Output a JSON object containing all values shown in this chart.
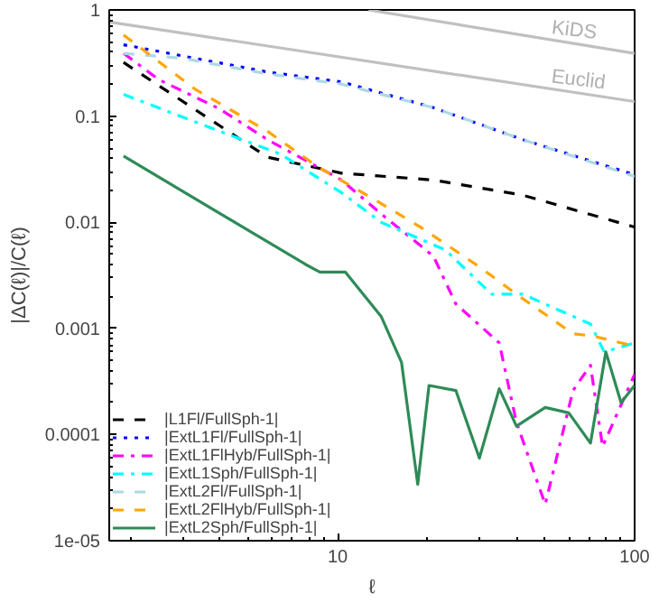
{
  "chart_data": {
    "type": "line",
    "xlabel": "ℓ",
    "ylabel": "|ΔC(ℓ)|/C(ℓ)",
    "log": "xy",
    "xlim": [
      1.7,
      100
    ],
    "ylim": [
      1e-05,
      1
    ],
    "xticks": [
      10,
      100
    ],
    "yticks": [
      1,
      0.1,
      0.01,
      0.001,
      0.0001,
      {
        "value": 1e-05,
        "label": "1e-05"
      }
    ],
    "grid": false,
    "legend": "bottom left",
    "series": [
      {
        "name": "|L1Fl/FullSph-1|",
        "color": "#000000",
        "line_style": "dashed",
        "x": [
          1.9,
          5.8,
          10.3,
          21,
          42,
          100
        ],
        "values": [
          0.32,
          0.041,
          0.029,
          0.025,
          0.018,
          0.009
        ]
      },
      {
        "name": "|ExtL1Fl/FullSph-1|",
        "color": "#0000ff",
        "line_style": "dotted",
        "x": [
          1.9,
          5.8,
          10.3,
          21,
          42,
          100
        ],
        "values": [
          0.47,
          0.26,
          0.21,
          0.12,
          0.06,
          0.028
        ]
      },
      {
        "name": "|ExtL1FlHyb/FullSph-1|",
        "color": "#ff00ff",
        "line_style": "dashdot",
        "x": [
          1.9,
          2.5,
          4,
          5.8,
          10.3,
          14,
          21,
          25,
          35,
          40,
          50,
          62,
          71,
          78,
          100
        ],
        "values": [
          0.39,
          0.22,
          0.117,
          0.06,
          0.025,
          0.012,
          0.0048,
          0.0017,
          0.00073,
          0.00013,
          2.2e-05,
          0.00026,
          0.00045,
          7.7e-05,
          0.00037
        ]
      },
      {
        "name": "|ExtL1Sph/FullSph-1|",
        "color": "#00ffff",
        "line_style": "dashdot",
        "x": [
          1.9,
          4,
          6.4,
          10.3,
          14,
          23,
          33,
          42,
          71,
          79,
          100
        ],
        "values": [
          0.16,
          0.072,
          0.044,
          0.019,
          0.01,
          0.0055,
          0.0021,
          0.0021,
          0.0011,
          0.0006,
          0.00073
        ]
      },
      {
        "name": "|ExtL2Fl/FullSph-1|",
        "color": "#add8e6",
        "line_style": "dashed",
        "x": [
          1.9,
          3,
          5.8,
          10.3,
          21,
          42,
          100
        ],
        "values": [
          0.39,
          0.35,
          0.25,
          0.2,
          0.12,
          0.06,
          0.027
        ]
      },
      {
        "name": "|ExtL2FlHyb/FullSph-1|",
        "color": "#ffa500",
        "line_style": "dashed",
        "x": [
          1.9,
          3.3,
          5.8,
          8.6,
          13,
          19,
          30,
          40,
          62,
          72,
          100
        ],
        "values": [
          0.58,
          0.18,
          0.072,
          0.033,
          0.017,
          0.009,
          0.0038,
          0.0021,
          0.00089,
          0.00085,
          0.00068
        ]
      },
      {
        "name": "|ExtL2Sph/FullSph-1|",
        "color": "#2e8b57",
        "line_style": "solid",
        "x": [
          1.9,
          7.8,
          8.7,
          10.6,
          14,
          16.4,
          18.6,
          20.3,
          25,
          30,
          35,
          40,
          50,
          60,
          71,
          80,
          90,
          100
        ],
        "values": [
          0.042,
          0.004,
          0.0034,
          0.0034,
          0.0013,
          0.00048,
          3.4e-05,
          0.00029,
          0.00026,
          6e-05,
          0.00027,
          0.00012,
          0.00018,
          0.00016,
          8.3e-05,
          0.0006,
          0.0002,
          0.00029
        ]
      },
      {
        "color": "#c0c0c0",
        "line_style": "solid",
        "x": [
          12.7,
          100
        ],
        "values": [
          1,
          0.39
        ]
      },
      {
        "color": "#c0c0c0",
        "line_style": "solid",
        "x": [
          1.7,
          100
        ],
        "values": [
          0.77,
          0.137
        ]
      }
    ],
    "annotations": [
      {
        "text": "KiDS",
        "x": 62,
        "y": 0.485
      },
      {
        "text": "Euclid",
        "x": 64,
        "y": 0.166
      }
    ]
  }
}
